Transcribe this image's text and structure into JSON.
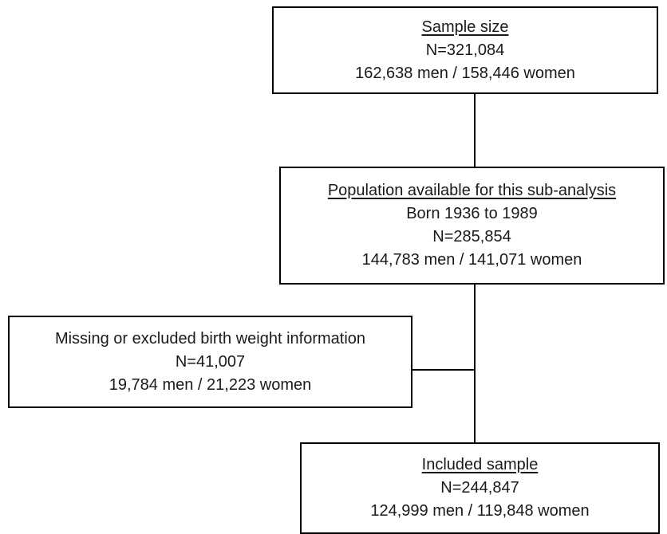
{
  "flowchart": {
    "sample_size": {
      "heading": "Sample size",
      "n": "N=321,084",
      "breakdown": "162,638 men / 158,446 women"
    },
    "population": {
      "heading": "Population available for this sub-analysis",
      "subtitle": "Born 1936 to 1989",
      "n": "N=285,854",
      "breakdown": "144,783 men / 141,071 women"
    },
    "excluded": {
      "heading": "Missing or excluded birth weight information",
      "n": "N=41,007",
      "breakdown": "19,784 men / 21,223 women"
    },
    "included": {
      "heading": "Included sample",
      "n": "N=244,847",
      "breakdown": "124,999 men / 119,848 women"
    }
  }
}
